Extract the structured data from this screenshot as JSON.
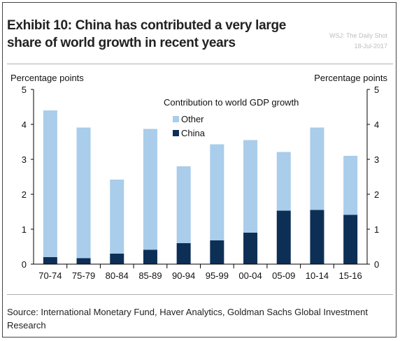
{
  "header": {
    "title": "Exhibit 10: China has contributed a very large share of world growth in recent years",
    "credit_line1": "WSJ: The Daily Shot",
    "credit_line2": "18-Jul-2017"
  },
  "footer": {
    "source": "Source: International Monetary Fund, Haver Analytics, Goldman Sachs Global Investment Research"
  },
  "colors": {
    "other": "#a9cdea",
    "china": "#0d2f56",
    "axis": "#000000"
  },
  "chart_data": {
    "type": "bar",
    "stacked": true,
    "title": "Contribution to world GDP growth",
    "ylabel_left": "Percentage points",
    "ylabel_right": "Percentage points",
    "ylim": [
      0,
      5
    ],
    "yticks": [
      0,
      1,
      2,
      3,
      4,
      5
    ],
    "categories": [
      "70-74",
      "75-79",
      "80-84",
      "85-89",
      "90-94",
      "95-99",
      "00-04",
      "05-09",
      "10-14",
      "15-16"
    ],
    "series": [
      {
        "name": "China",
        "values": [
          0.2,
          0.17,
          0.3,
          0.41,
          0.6,
          0.68,
          0.9,
          1.53,
          1.55,
          1.41
        ]
      },
      {
        "name": "Other",
        "values": [
          4.2,
          3.74,
          2.12,
          3.46,
          2.2,
          2.75,
          2.65,
          1.68,
          2.36,
          1.69
        ]
      }
    ],
    "legend": {
      "position": "top-center",
      "order": [
        "Other",
        "China"
      ]
    },
    "grid": false
  }
}
